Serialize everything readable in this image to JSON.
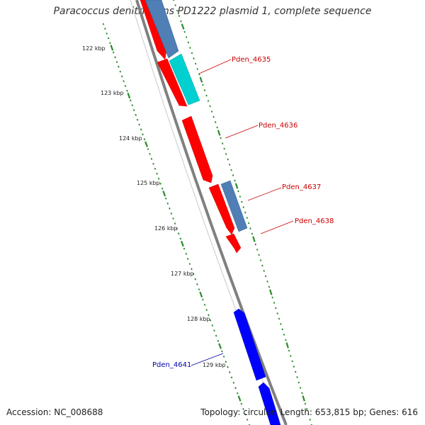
{
  "title": "Paracoccus denitrificans PD1222 plasmid 1, complete sequence",
  "footer": {
    "accession": "Accession: NC_008688",
    "summary": "Topology: circular; Length: 653,815 bp; Genes: 616"
  },
  "ticks": [
    {
      "label": "122 kbp",
      "kbp": 122
    },
    {
      "label": "123 kbp",
      "kbp": 123
    },
    {
      "label": "124 kbp",
      "kbp": 124
    },
    {
      "label": "125 kbp",
      "kbp": 125
    },
    {
      "label": "126 kbp",
      "kbp": 126
    },
    {
      "label": "127 kbp",
      "kbp": 127
    },
    {
      "label": "128 kbp",
      "kbp": 128
    },
    {
      "label": "129 kbp",
      "kbp": 129
    }
  ],
  "gene_labels": [
    {
      "name": "Pden_4635",
      "color": "#cc0000"
    },
    {
      "name": "Pden_4636",
      "color": "#cc0000"
    },
    {
      "name": "Pden_4637",
      "color": "#cc0000"
    },
    {
      "name": "Pden_4638",
      "color": "#cc0000"
    },
    {
      "name": "Pden_4641",
      "color": "#0000aa"
    }
  ],
  "colors": {
    "backbone": "#808080",
    "tick": "#2a8a2a",
    "red_gene": "#ff0000",
    "blue_gene": "#0000ff",
    "steel_gene": "#4f7fb5",
    "cyan_gene": "#00d0d0"
  }
}
